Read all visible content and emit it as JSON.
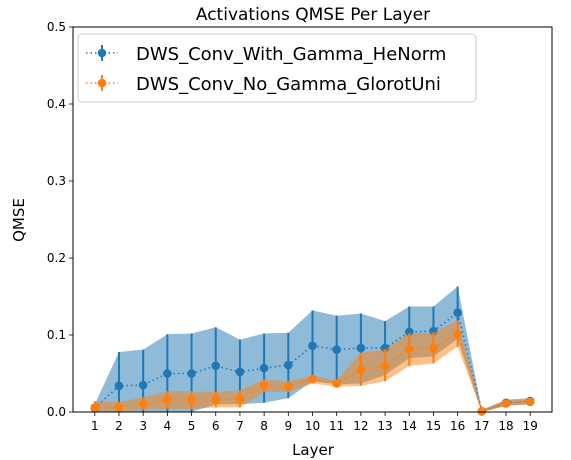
{
  "chart_data": {
    "type": "line",
    "title": "Activations QMSE Per Layer",
    "xlabel": "Layer",
    "ylabel": "QMSE",
    "ylim": [
      0,
      0.5
    ],
    "yticks": [
      "0.0",
      "0.1",
      "0.2",
      "0.3",
      "0.4",
      "0.5"
    ],
    "x": [
      1,
      2,
      3,
      4,
      5,
      6,
      7,
      8,
      9,
      10,
      11,
      12,
      13,
      14,
      15,
      16,
      17,
      18,
      19
    ],
    "legend": "top-left",
    "series": [
      {
        "name": "DWS_Conv_With_Gamma_HeNorm",
        "color": "#1f77b4",
        "values": [
          0.005,
          0.034,
          0.035,
          0.05,
          0.05,
          0.06,
          0.052,
          0.057,
          0.061,
          0.086,
          0.081,
          0.083,
          0.083,
          0.104,
          0.105,
          0.129,
          0.001,
          0.012,
          0.014
        ],
        "lower": [
          0.0,
          0.0,
          0.0,
          0.0,
          0.0,
          0.01,
          0.01,
          0.012,
          0.018,
          0.04,
          0.036,
          0.037,
          0.048,
          0.07,
          0.072,
          0.095,
          0.0,
          0.008,
          0.01
        ],
        "upper": [
          0.01,
          0.078,
          0.081,
          0.101,
          0.102,
          0.11,
          0.094,
          0.102,
          0.103,
          0.132,
          0.125,
          0.128,
          0.118,
          0.137,
          0.137,
          0.163,
          0.003,
          0.016,
          0.018
        ]
      },
      {
        "name": "DWS_Conv_No_Gamma_GlorotUni",
        "color": "#ff7f0e",
        "values": [
          0.006,
          0.006,
          0.01,
          0.016,
          0.016,
          0.016,
          0.017,
          0.035,
          0.033,
          0.043,
          0.037,
          0.055,
          0.06,
          0.082,
          0.083,
          0.101,
          0.001,
          0.011,
          0.013
        ],
        "lower": [
          0.001,
          0.001,
          0.003,
          0.004,
          0.004,
          0.006,
          0.006,
          0.026,
          0.026,
          0.037,
          0.033,
          0.034,
          0.04,
          0.06,
          0.063,
          0.085,
          0.0,
          0.008,
          0.01
        ],
        "upper": [
          0.014,
          0.013,
          0.019,
          0.027,
          0.027,
          0.026,
          0.028,
          0.042,
          0.04,
          0.047,
          0.041,
          0.077,
          0.081,
          0.102,
          0.103,
          0.119,
          0.003,
          0.015,
          0.016
        ]
      }
    ]
  }
}
